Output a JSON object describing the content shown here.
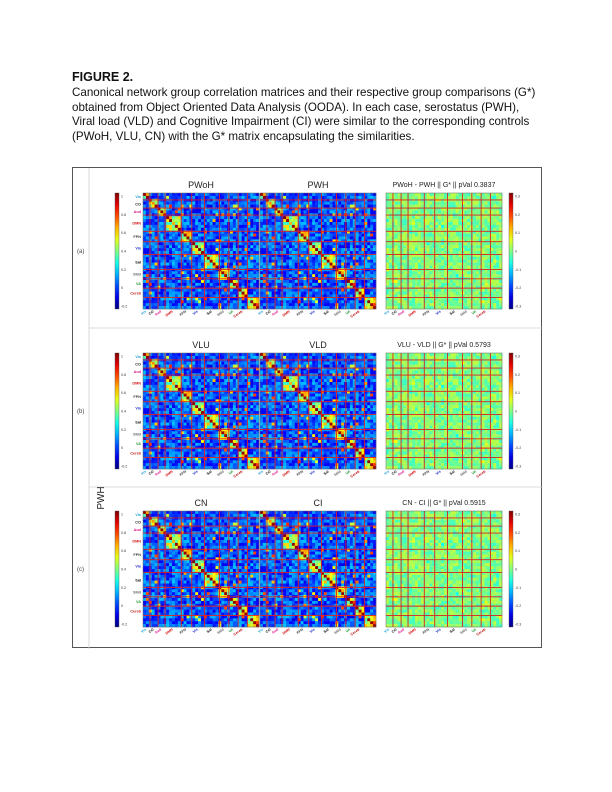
{
  "figure": {
    "title": "FIGURE 2.",
    "caption": "Canonical network group correlation matrices and their respective group comparisons (G*) obtained from Object Oriented Data Analysis (OODA). In each case, serostatus (PWH), Viral load (VLD) and Cognitive Impairment (CI) were similar to the corresponding controls (PWoH, VLU, CN) with the G* matrix encapsulating the similarities."
  },
  "side_label": "PWH",
  "rows": [
    {
      "label": "(a)",
      "left_title": "PWoH",
      "mid_title": "PWH",
      "diff_title": "PWoH - PWH || G* || pVal 0.3837"
    },
    {
      "label": "(b)",
      "left_title": "VLU",
      "mid_title": "VLD",
      "diff_title": "VLU - VLD || G* || pVal 0.5793"
    },
    {
      "label": "(c)",
      "left_title": "CN",
      "mid_title": "CI",
      "diff_title": "CN - CI || G* || pVal 0.5915"
    }
  ],
  "colorbars": {
    "corr_ticks": [
      "1",
      "0.8",
      "0.6",
      "0.4",
      "0.2",
      "0",
      "-0.2"
    ],
    "diff_ticks": [
      "0.3",
      "0.2",
      "0.1",
      "0",
      "-0.1",
      "-0.2",
      "-0.3"
    ]
  },
  "networks": {
    "y_labels": [
      {
        "text": "Vis",
        "color": "#22a0d8"
      },
      {
        "text": "CO",
        "color": "#222222"
      },
      {
        "text": "Aud",
        "color": "#e01890"
      },
      {
        "text": "DMN",
        "color": "#d81818"
      },
      {
        "text": "FPN",
        "color": "#444444"
      },
      {
        "text": "Vis",
        "color": "#1828c0"
      },
      {
        "text": "Sal",
        "color": "#111111"
      },
      {
        "text": "SMd",
        "color": "#707070"
      },
      {
        "text": "VA",
        "color": "#2a9a3a"
      },
      {
        "text": "Cereb",
        "color": "#c01818"
      }
    ],
    "x_labels": [
      {
        "text": "Vis",
        "color": "#22a0d8"
      },
      {
        "text": "CO",
        "color": "#222222"
      },
      {
        "text": "Aud",
        "color": "#e01890"
      },
      {
        "text": "DMN",
        "color": "#d81818"
      },
      {
        "text": "FPN",
        "color": "#444444"
      },
      {
        "text": "Vis",
        "color": "#1828c0"
      },
      {
        "text": "Sal",
        "color": "#111111"
      },
      {
        "text": "SMd",
        "color": "#707070"
      },
      {
        "text": "VA",
        "color": "#2a9a3a"
      },
      {
        "text": "Cereb",
        "color": "#c01818"
      }
    ]
  }
}
